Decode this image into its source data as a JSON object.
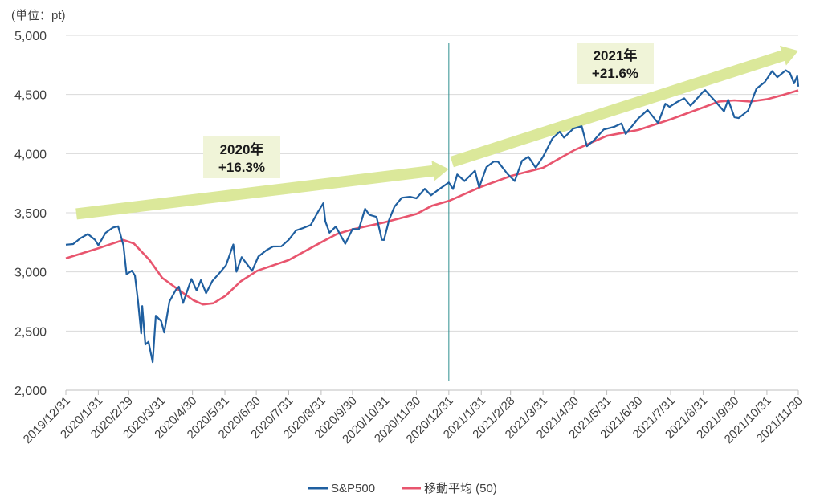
{
  "chart_data": {
    "type": "line",
    "unit_label": "(単位：pt)",
    "ylim": [
      2000,
      5000
    ],
    "yticks": [
      {
        "value": 2000,
        "label": "2,000"
      },
      {
        "value": 2500,
        "label": "2,500"
      },
      {
        "value": 3000,
        "label": "3,000"
      },
      {
        "value": 3500,
        "label": "3,500"
      },
      {
        "value": 4000,
        "label": "4,000"
      },
      {
        "value": 4500,
        "label": "4,500"
      },
      {
        "value": 5000,
        "label": "5,000"
      }
    ],
    "x_start": "2019-12-31",
    "x_end": "2021-11-30",
    "xticks": [
      {
        "date": "2019-12-31",
        "label": "2019/12/31"
      },
      {
        "date": "2020-01-31",
        "label": "2020/1/31"
      },
      {
        "date": "2020-02-29",
        "label": "2020/2/29"
      },
      {
        "date": "2020-03-31",
        "label": "2020/3/31"
      },
      {
        "date": "2020-04-30",
        "label": "2020/4/30"
      },
      {
        "date": "2020-05-31",
        "label": "2020/5/31"
      },
      {
        "date": "2020-06-30",
        "label": "2020/6/30"
      },
      {
        "date": "2020-07-31",
        "label": "2020/7/31"
      },
      {
        "date": "2020-08-31",
        "label": "2020/8/31"
      },
      {
        "date": "2020-09-30",
        "label": "2020/9/30"
      },
      {
        "date": "2020-10-31",
        "label": "2020/10/31"
      },
      {
        "date": "2020-11-30",
        "label": "2020/11/30"
      },
      {
        "date": "2020-12-31",
        "label": "2020/12/31"
      },
      {
        "date": "2021-01-31",
        "label": "2021/1/31"
      },
      {
        "date": "2021-02-28",
        "label": "2021/2/28"
      },
      {
        "date": "2021-03-31",
        "label": "2021/3/31"
      },
      {
        "date": "2021-04-30",
        "label": "2021/4/30"
      },
      {
        "date": "2021-05-31",
        "label": "2021/5/31"
      },
      {
        "date": "2021-06-30",
        "label": "2021/6/30"
      },
      {
        "date": "2021-07-31",
        "label": "2021/7/31"
      },
      {
        "date": "2021-08-31",
        "label": "2021/8/31"
      },
      {
        "date": "2021-09-30",
        "label": "2021/9/30"
      },
      {
        "date": "2021-10-31",
        "label": "2021/10/31"
      },
      {
        "date": "2021-11-30",
        "label": "2021/11/30"
      }
    ],
    "divider_date": "2020-12-31",
    "series": [
      {
        "name": "S&P500",
        "color": "#1f5fa0",
        "points": [
          [
            "2019-12-31",
            3230
          ],
          [
            "2020-01-07",
            3235
          ],
          [
            "2020-01-14",
            3285
          ],
          [
            "2020-01-21",
            3320
          ],
          [
            "2020-01-28",
            3270
          ],
          [
            "2020-01-31",
            3225
          ],
          [
            "2020-02-07",
            3330
          ],
          [
            "2020-02-14",
            3375
          ],
          [
            "2020-02-19",
            3386
          ],
          [
            "2020-02-24",
            3225
          ],
          [
            "2020-02-27",
            2980
          ],
          [
            "2020-03-03",
            3010
          ],
          [
            "2020-03-06",
            2970
          ],
          [
            "2020-03-09",
            2750
          ],
          [
            "2020-03-12",
            2480
          ],
          [
            "2020-03-13",
            2711
          ],
          [
            "2020-03-16",
            2386
          ],
          [
            "2020-03-19",
            2409
          ],
          [
            "2020-03-23",
            2237
          ],
          [
            "2020-03-26",
            2630
          ],
          [
            "2020-03-31",
            2585
          ],
          [
            "2020-04-03",
            2488
          ],
          [
            "2020-04-08",
            2750
          ],
          [
            "2020-04-14",
            2846
          ],
          [
            "2020-04-17",
            2875
          ],
          [
            "2020-04-21",
            2737
          ],
          [
            "2020-04-29",
            2940
          ],
          [
            "2020-05-04",
            2842
          ],
          [
            "2020-05-08",
            2930
          ],
          [
            "2020-05-13",
            2820
          ],
          [
            "2020-05-19",
            2923
          ],
          [
            "2020-05-26",
            2992
          ],
          [
            "2020-06-01",
            3055
          ],
          [
            "2020-06-08",
            3232
          ],
          [
            "2020-06-11",
            3002
          ],
          [
            "2020-06-16",
            3125
          ],
          [
            "2020-06-26",
            3009
          ],
          [
            "2020-07-02",
            3130
          ],
          [
            "2020-07-10",
            3185
          ],
          [
            "2020-07-16",
            3215
          ],
          [
            "2020-07-24",
            3216
          ],
          [
            "2020-07-31",
            3271
          ],
          [
            "2020-08-07",
            3351
          ],
          [
            "2020-08-14",
            3372
          ],
          [
            "2020-08-21",
            3397
          ],
          [
            "2020-08-28",
            3508
          ],
          [
            "2020-09-02",
            3580
          ],
          [
            "2020-09-04",
            3427
          ],
          [
            "2020-09-08",
            3331
          ],
          [
            "2020-09-14",
            3383
          ],
          [
            "2020-09-18",
            3319
          ],
          [
            "2020-09-23",
            3237
          ],
          [
            "2020-09-30",
            3363
          ],
          [
            "2020-10-06",
            3361
          ],
          [
            "2020-10-12",
            3534
          ],
          [
            "2020-10-16",
            3483
          ],
          [
            "2020-10-23",
            3465
          ],
          [
            "2020-10-28",
            3271
          ],
          [
            "2020-10-30",
            3270
          ],
          [
            "2020-11-04",
            3443
          ],
          [
            "2020-11-09",
            3550
          ],
          [
            "2020-11-16",
            3627
          ],
          [
            "2020-11-24",
            3635
          ],
          [
            "2020-11-30",
            3622
          ],
          [
            "2020-12-08",
            3702
          ],
          [
            "2020-12-14",
            3647
          ],
          [
            "2020-12-21",
            3694
          ],
          [
            "2020-12-31",
            3756
          ],
          [
            "2021-01-04",
            3700
          ],
          [
            "2021-01-08",
            3824
          ],
          [
            "2021-01-15",
            3768
          ],
          [
            "2021-01-25",
            3855
          ],
          [
            "2021-01-29",
            3714
          ],
          [
            "2021-02-05",
            3886
          ],
          [
            "2021-02-12",
            3934
          ],
          [
            "2021-02-16",
            3932
          ],
          [
            "2021-02-25",
            3829
          ],
          [
            "2021-03-04",
            3768
          ],
          [
            "2021-03-11",
            3939
          ],
          [
            "2021-03-17",
            3974
          ],
          [
            "2021-03-24",
            3881
          ],
          [
            "2021-03-31",
            3973
          ],
          [
            "2021-04-09",
            4128
          ],
          [
            "2021-04-16",
            4185
          ],
          [
            "2021-04-20",
            4135
          ],
          [
            "2021-04-29",
            4211
          ],
          [
            "2021-05-07",
            4232
          ],
          [
            "2021-05-12",
            4063
          ],
          [
            "2021-05-19",
            4115
          ],
          [
            "2021-05-28",
            4204
          ],
          [
            "2021-06-07",
            4226
          ],
          [
            "2021-06-14",
            4255
          ],
          [
            "2021-06-18",
            4166
          ],
          [
            "2021-06-30",
            4297
          ],
          [
            "2021-07-09",
            4369
          ],
          [
            "2021-07-19",
            4258
          ],
          [
            "2021-07-26",
            4422
          ],
          [
            "2021-07-30",
            4395
          ],
          [
            "2021-08-06",
            4436
          ],
          [
            "2021-08-13",
            4468
          ],
          [
            "2021-08-19",
            4405
          ],
          [
            "2021-08-31",
            4523
          ],
          [
            "2021-09-02",
            4537
          ],
          [
            "2021-09-10",
            4459
          ],
          [
            "2021-09-20",
            4358
          ],
          [
            "2021-09-24",
            4455
          ],
          [
            "2021-09-30",
            4308
          ],
          [
            "2021-10-04",
            4300
          ],
          [
            "2021-10-13",
            4364
          ],
          [
            "2021-10-21",
            4549
          ],
          [
            "2021-10-29",
            4605
          ],
          [
            "2021-11-05",
            4697
          ],
          [
            "2021-11-10",
            4646
          ],
          [
            "2021-11-18",
            4704
          ],
          [
            "2021-11-22",
            4682
          ],
          [
            "2021-11-26",
            4594
          ],
          [
            "2021-11-29",
            4655
          ],
          [
            "2021-11-30",
            4567
          ]
        ]
      },
      {
        "name": "移動平均 (50)",
        "color": "#e8556e",
        "points": [
          [
            "2019-12-31",
            3115
          ],
          [
            "2020-01-31",
            3200
          ],
          [
            "2020-02-24",
            3270
          ],
          [
            "2020-03-05",
            3240
          ],
          [
            "2020-03-20",
            3100
          ],
          [
            "2020-04-01",
            2950
          ],
          [
            "2020-04-15",
            2860
          ],
          [
            "2020-05-01",
            2760
          ],
          [
            "2020-05-10",
            2725
          ],
          [
            "2020-05-20",
            2735
          ],
          [
            "2020-06-01",
            2800
          ],
          [
            "2020-06-15",
            2920
          ],
          [
            "2020-07-01",
            3010
          ],
          [
            "2020-07-31",
            3100
          ],
          [
            "2020-08-31",
            3250
          ],
          [
            "2020-09-15",
            3320
          ],
          [
            "2020-09-30",
            3360
          ],
          [
            "2020-10-31",
            3420
          ],
          [
            "2020-11-30",
            3490
          ],
          [
            "2020-12-15",
            3560
          ],
          [
            "2020-12-31",
            3600
          ],
          [
            "2021-01-31",
            3720
          ],
          [
            "2021-02-28",
            3810
          ],
          [
            "2021-03-31",
            3880
          ],
          [
            "2021-04-30",
            4030
          ],
          [
            "2021-05-31",
            4150
          ],
          [
            "2021-06-30",
            4200
          ],
          [
            "2021-07-31",
            4290
          ],
          [
            "2021-08-31",
            4390
          ],
          [
            "2021-09-15",
            4440
          ],
          [
            "2021-09-30",
            4450
          ],
          [
            "2021-10-15",
            4440
          ],
          [
            "2021-10-31",
            4460
          ],
          [
            "2021-11-15",
            4495
          ],
          [
            "2021-11-30",
            4535
          ]
        ]
      }
    ],
    "annotations": [
      {
        "line1": "2020年",
        "line2": "+16.3%"
      },
      {
        "line1": "2021年",
        "line2": "+21.6%"
      }
    ],
    "trend_arrows": [
      {
        "start": [
          "2020-01-10",
          3490
        ],
        "end": [
          "2020-12-31",
          3870
        ]
      },
      {
        "start": [
          "2021-01-03",
          3930
        ],
        "end": [
          "2021-11-30",
          4870
        ]
      }
    ],
    "colors": {
      "arrow": "#dbe89a",
      "grid": "#d9d9d9",
      "divider": "#2f8f8f"
    }
  }
}
